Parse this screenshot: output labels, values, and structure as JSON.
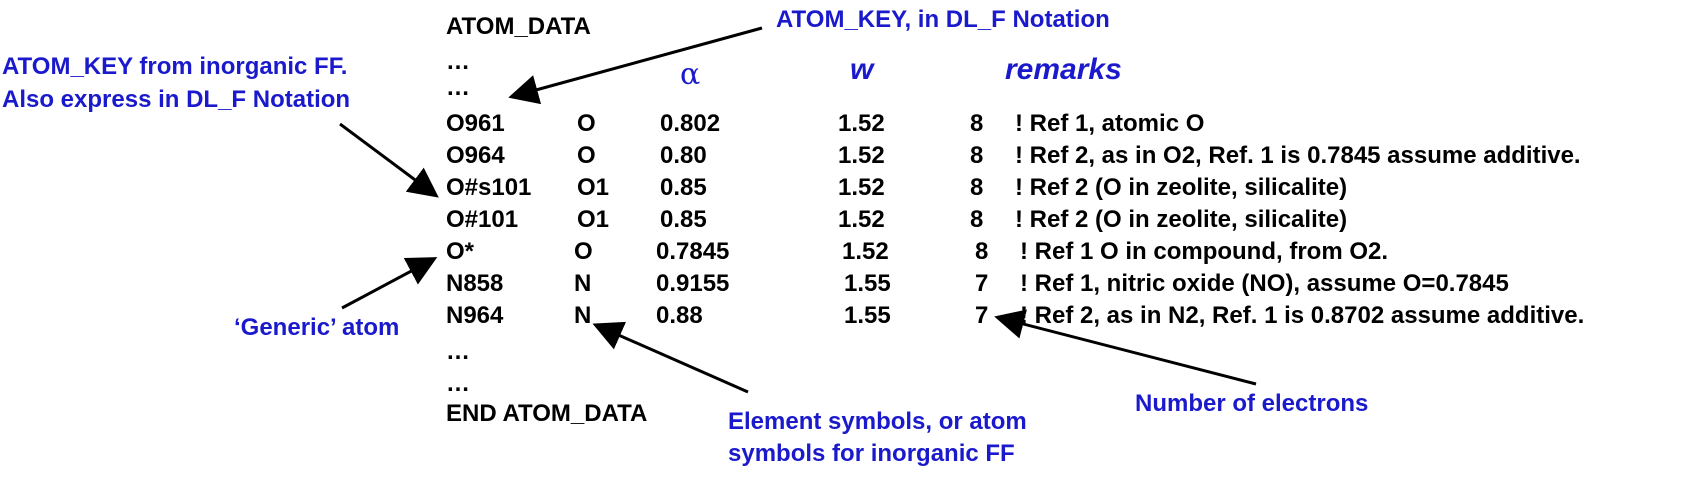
{
  "header": {
    "title": "ATOM_DATA",
    "ellipsis_1": "…",
    "ellipsis_2": "…",
    "col_alpha": "α",
    "col_w": "w",
    "col_remarks": "remarks"
  },
  "rows": [
    {
      "key": "O961",
      "element": "O",
      "alpha": "0.802",
      "w": "1.52",
      "electrons": "8",
      "remark": "! Ref 1, atomic O"
    },
    {
      "key": "O964",
      "element": "O",
      "alpha": "0.80",
      "w": "1.52",
      "electrons": "8",
      "remark": "! Ref 2, as in O2, Ref. 1 is 0.7845 assume additive."
    },
    {
      "key": "O#s101",
      "element": "O1",
      "alpha": "0.85",
      "w": "1.52",
      "electrons": "8",
      "remark": "! Ref 2 (O in zeolite, silicalite)"
    },
    {
      "key": "O#101",
      "element": "O1",
      "alpha": "0.85",
      "w": "1.52",
      "electrons": "8",
      "remark": "! Ref 2 (O in zeolite, silicalite)"
    },
    {
      "key": "O*",
      "element": "O",
      "alpha": "0.7845",
      "w": "1.52",
      "electrons": "8",
      "remark": "! Ref 1 O in compound, from O2."
    },
    {
      "key": "N858",
      "element": "N",
      "alpha": "0.9155",
      "w": "1.55",
      "electrons": "7",
      "remark": "! Ref 1, nitric oxide (NO), assume O=0.7845"
    },
    {
      "key": "N964",
      "element": "N",
      "alpha": "0.88",
      "w": "1.55",
      "electrons": "7",
      "remark": "! Ref 2, as in N2, Ref. 1 is 0.8702 assume additive."
    }
  ],
  "footer": {
    "ellipsis_1": "…",
    "ellipsis_2": "…",
    "end": "END ATOM_DATA"
  },
  "annotations": {
    "atom_key_dlf": "ATOM_KEY, in DL_F Notation",
    "atom_key_inorganic_1": "ATOM_KEY from inorganic FF.",
    "atom_key_inorganic_2": "Also express in DL_F Notation",
    "generic_atom": "‘Generic’ atom",
    "element_symbols_1": "Element symbols, or atom",
    "element_symbols_2": "symbols for inorganic FF",
    "num_electrons": "Number of electrons"
  },
  "colors": {
    "annotation": "#1a1acc",
    "text": "#000000",
    "arrow": "#000000"
  }
}
